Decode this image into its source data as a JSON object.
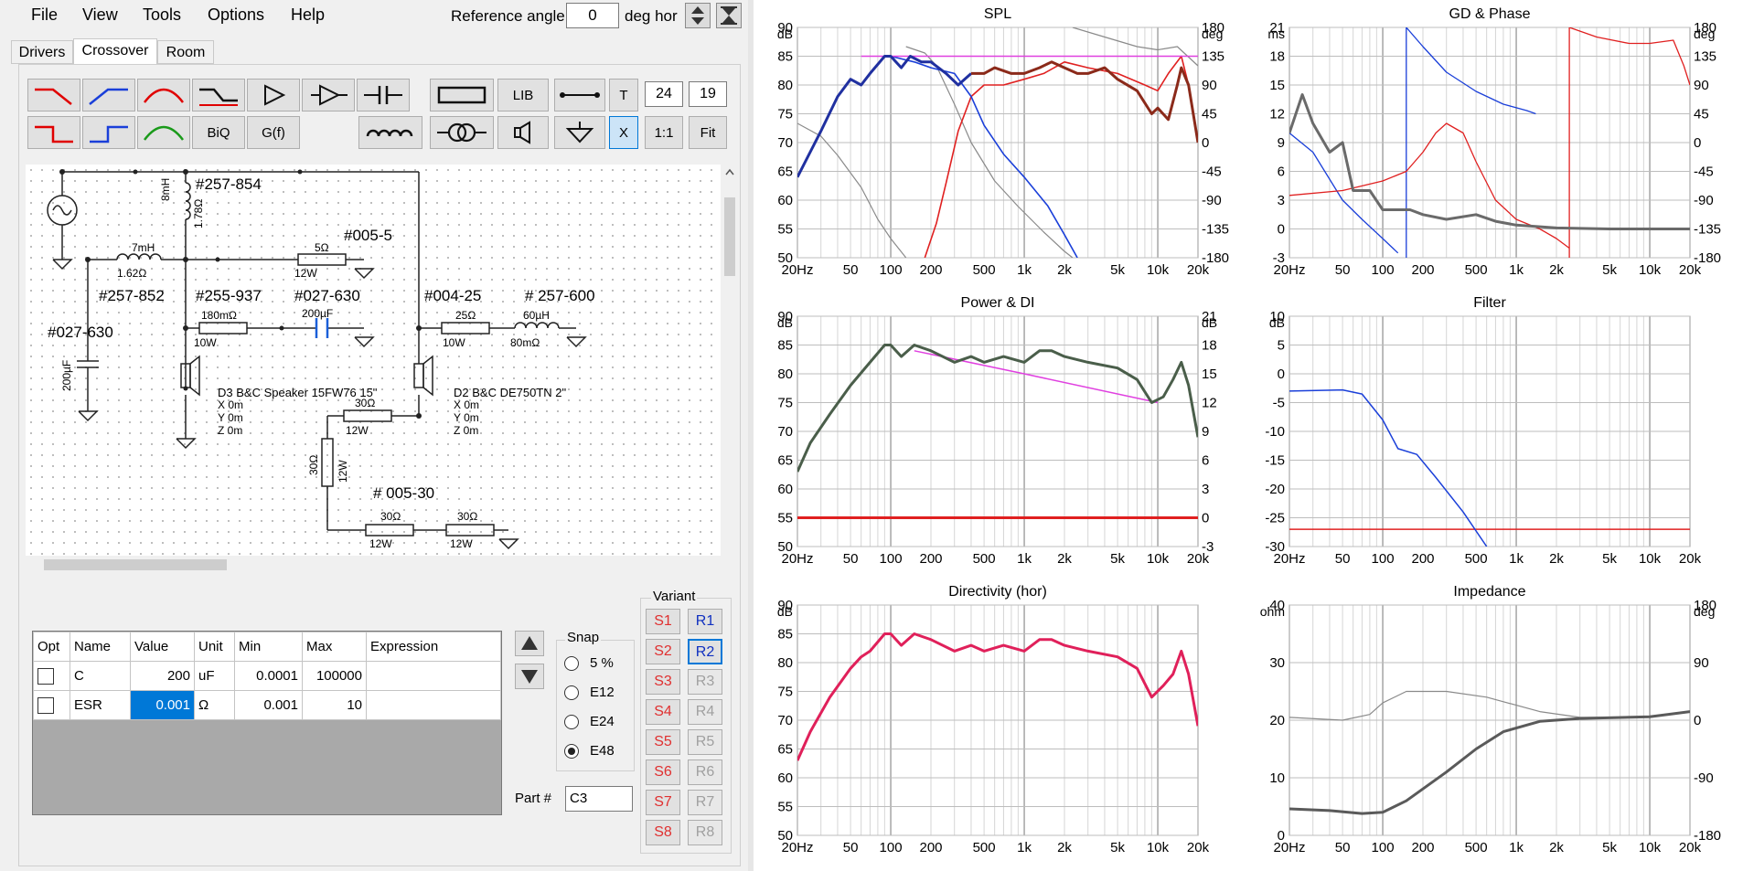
{
  "menu": [
    "File",
    "View",
    "Tools",
    "Options",
    "Help"
  ],
  "reference_angle": {
    "label": "Reference angle",
    "value": "0",
    "unit": "deg hor"
  },
  "tabs": [
    "Drivers",
    "Crossover",
    "Room"
  ],
  "toolbar": {
    "lib": "LIB",
    "t": "T",
    "biq": "BiQ",
    "gf": "G(f)",
    "x": "X",
    "one": "1:1",
    "fit": "Fit",
    "val1": "24",
    "val2": "19"
  },
  "schematic": {
    "labels": [
      "#257-854",
      "#005-5",
      "#257-852",
      "#255-937",
      "#027-630",
      "#004-25",
      "# 257-600",
      "#027-630",
      "# 005-30"
    ],
    "values": [
      "8mH",
      "1.78Ω",
      "7mH",
      "1.62Ω",
      "5Ω",
      "12W",
      "180mΩ",
      "10W",
      "200µF",
      "25Ω",
      "10W",
      "60µH",
      "80mΩ",
      "200µF",
      "30Ω",
      "12W",
      "30Ω",
      "12W",
      "30Ω",
      "12W",
      "30Ω",
      "12W"
    ],
    "d3": [
      "D3 B&C Speaker 15FW76 15\"",
      "X 0m",
      "Y 0m",
      "Z 0m"
    ],
    "d2": [
      "D2 B&C DE750TN 2\"",
      "X 0m",
      "Y 0m",
      "Z 0m"
    ]
  },
  "params": {
    "headers": [
      "Opt",
      "Name",
      "Value",
      "Unit",
      "Min",
      "Max",
      "Expression"
    ],
    "rows": [
      [
        "",
        "C",
        "200",
        "uF",
        "0.0001",
        "100000",
        ""
      ],
      [
        "",
        "ESR",
        "0.001",
        "Ω",
        "0.001",
        "10",
        ""
      ]
    ]
  },
  "snap": {
    "title": "Snap",
    "options": [
      "5 %",
      "E12",
      "E24",
      "E48"
    ],
    "selected": "E48"
  },
  "part": {
    "label": "Part #",
    "value": "C3"
  },
  "variant": {
    "title": "Variant",
    "s": [
      "S1",
      "S2",
      "S3",
      "S4",
      "S5",
      "S6",
      "S7",
      "S8"
    ],
    "r": [
      "R1",
      "R2",
      "R3",
      "R4",
      "R5",
      "R6",
      "R7",
      "R8"
    ]
  },
  "charts": {
    "freq_ticks": [
      "20Hz",
      "50",
      "100",
      "200",
      "500",
      "1k",
      "2k",
      "5k",
      "10k",
      "20k"
    ],
    "spl": {
      "title": "SPL",
      "unit_l": "dB",
      "unit_r": "deg",
      "yl": [
        "90",
        "85",
        "80",
        "75",
        "70",
        "65",
        "60",
        "55",
        "50"
      ],
      "yr": [
        "180",
        "135",
        "90",
        "45",
        "0",
        "-45",
        "-90",
        "-135",
        "-180"
      ]
    },
    "gd": {
      "title": "GD & Phase",
      "unit_l": "ms",
      "unit_r": "deg",
      "yl": [
        "21",
        "18",
        "15",
        "12",
        "9",
        "6",
        "3",
        "0",
        "-3"
      ],
      "yr": [
        "180",
        "135",
        "90",
        "45",
        "0",
        "-45",
        "-90",
        "-135",
        "-180"
      ]
    },
    "power": {
      "title": "Power & DI",
      "unit_l": "dB",
      "unit_r": "dB",
      "yl": [
        "90",
        "85",
        "80",
        "75",
        "70",
        "65",
        "60",
        "55",
        "50"
      ],
      "yr": [
        "21",
        "18",
        "15",
        "12",
        "9",
        "6",
        "3",
        "0",
        "-3"
      ]
    },
    "filter": {
      "title": "Filter",
      "unit_l": "dB",
      "yl": [
        "10",
        "5",
        "0",
        "-5",
        "-10",
        "-15",
        "-20",
        "-25",
        "-30"
      ]
    },
    "dir": {
      "title": "Directivity (hor)",
      "unit_l": "dB",
      "yl": [
        "90",
        "85",
        "80",
        "75",
        "70",
        "65",
        "60",
        "55",
        "50"
      ]
    },
    "imp": {
      "title": "Impedance",
      "unit_l": "ohm",
      "unit_r": "deg",
      "yl": [
        "40",
        "30",
        "20",
        "10",
        "0"
      ],
      "yr": [
        "180",
        "90",
        "0",
        "-90",
        "-180"
      ]
    }
  },
  "colors": {
    "accent": "#0078d7",
    "red": "#e00000",
    "blue": "#1a3fd9",
    "magenta": "#e040e0",
    "dark": "#555555"
  }
}
